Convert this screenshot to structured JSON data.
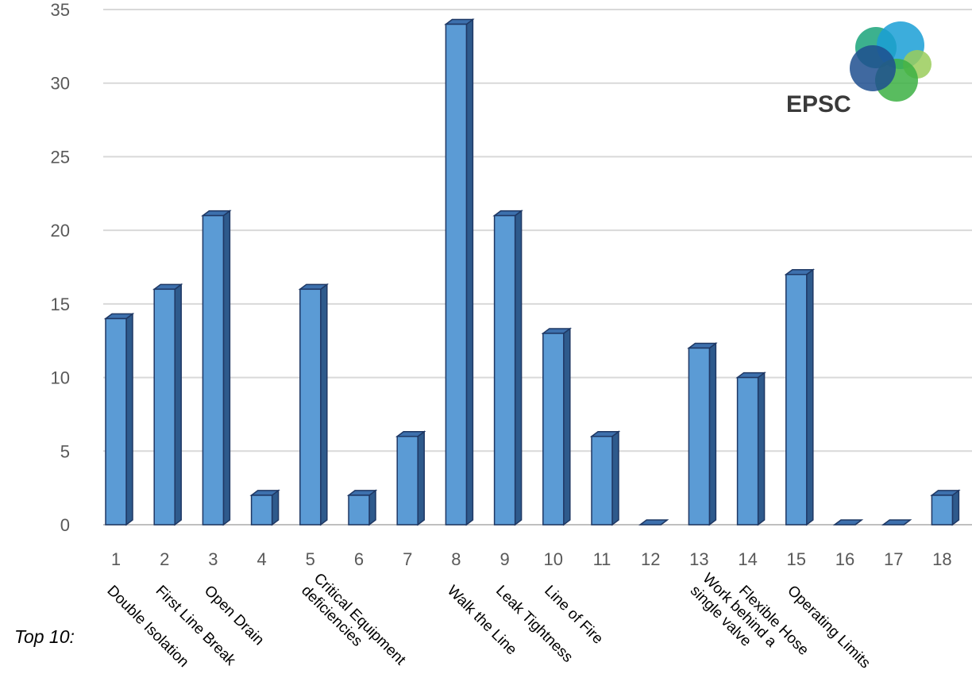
{
  "chart_data": {
    "type": "bar",
    "categories": [
      "1",
      "2",
      "3",
      "4",
      "5",
      "6",
      "7",
      "8",
      "9",
      "10",
      "11",
      "12",
      "13",
      "14",
      "15",
      "16",
      "17",
      "18"
    ],
    "values": [
      14,
      16,
      21,
      2,
      16,
      2,
      6,
      34,
      21,
      13,
      6,
      0,
      12,
      10,
      17,
      0,
      0,
      2
    ],
    "yticks": [
      "0",
      "5",
      "10",
      "15",
      "20",
      "25",
      "30",
      "35"
    ],
    "ylim": [
      0,
      35
    ],
    "grid": true,
    "bar_color": "#5b9bd5",
    "bar_edge_color": "#1f3864",
    "annotations_title": "Top 10:",
    "annotations": [
      {
        "category": "1",
        "text": [
          "Double Isolation"
        ]
      },
      {
        "category": "2",
        "text": [
          "First Line Break"
        ]
      },
      {
        "category": "3",
        "text": [
          "Open Drain"
        ]
      },
      {
        "category": "5",
        "text": [
          "Critical Equipment",
          "deficiencies"
        ]
      },
      {
        "category": "8",
        "text": [
          "Walk the Line"
        ]
      },
      {
        "category": "9",
        "text": [
          "Leak Tightness"
        ]
      },
      {
        "category": "10",
        "text": [
          "Line of Fire"
        ]
      },
      {
        "category": "13",
        "text": [
          "Work behind a",
          "single valve"
        ]
      },
      {
        "category": "14",
        "text": [
          "Flexible Hose"
        ]
      },
      {
        "category": "15",
        "text": [
          "Operating Limits"
        ]
      }
    ]
  },
  "logo": {
    "text": "EPSC",
    "colors": [
      "#1aa37a",
      "#1a9fd6",
      "#1f4f8f",
      "#3cb043",
      "#9acd5a"
    ]
  }
}
